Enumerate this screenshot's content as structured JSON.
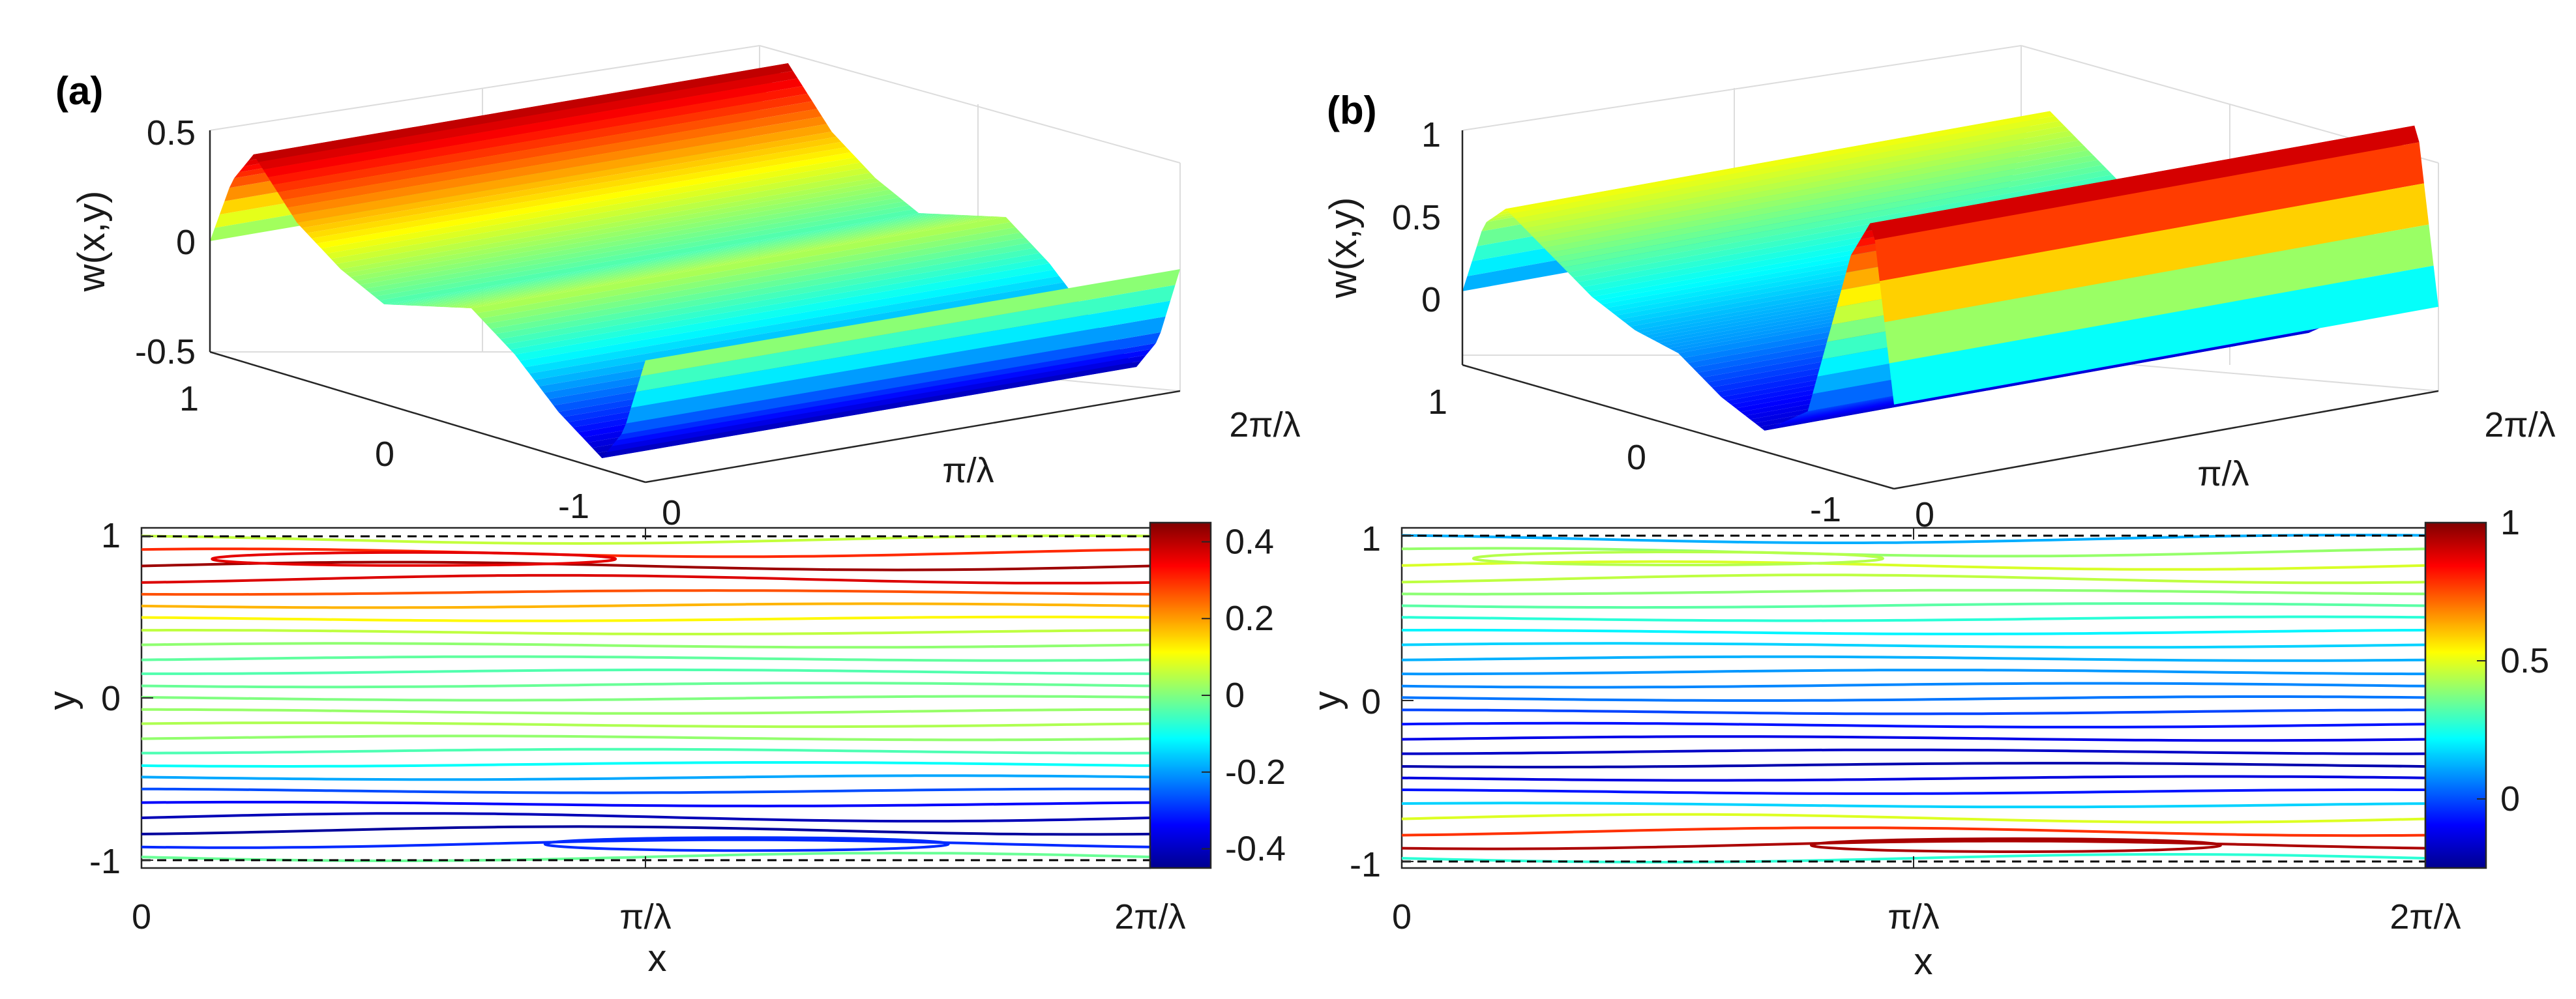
{
  "chart_data": [
    {
      "panel": "(a)",
      "type": "surface",
      "zlabel": "w(x,y)",
      "zlim": [
        -0.5,
        0.5
      ],
      "z_ticks": [
        "0.5",
        "0",
        "-0.5"
      ],
      "y_ticks": [
        "1",
        "0",
        "-1"
      ],
      "x_ticks": [
        "0",
        "π/λ",
        "2π/λ"
      ],
      "profile": {
        "y": [
          -1,
          -0.9,
          -0.8,
          -0.6,
          -0.4,
          -0.2,
          0,
          0.2,
          0.4,
          0.6,
          0.8,
          0.9,
          1
        ],
        "w": [
          0.05,
          -0.3,
          -0.45,
          -0.3,
          -0.1,
          0.05,
          0.0,
          -0.05,
          0.05,
          0.2,
          0.45,
          0.3,
          0.0
        ]
      }
    },
    {
      "panel": "(a)",
      "type": "contour",
      "xlabel": "x",
      "ylabel": "y",
      "x_ticks": [
        "0",
        "π/λ",
        "2π/λ"
      ],
      "y_ticks": [
        "1",
        "0",
        "-1"
      ],
      "colorbar": {
        "range": [
          -0.45,
          0.45
        ],
        "ticks": [
          "0.4",
          "0.2",
          "0",
          "-0.2",
          "-0.4"
        ],
        "tick_values": [
          0.4,
          0.2,
          0,
          -0.2,
          -0.4
        ]
      }
    },
    {
      "panel": "(b)",
      "type": "surface",
      "zlabel": "w(x,y)",
      "zlim": [
        -0.3,
        1
      ],
      "z_ticks": [
        "1",
        "0.5",
        "0"
      ],
      "y_ticks": [
        "1",
        "0",
        "-1"
      ],
      "x_ticks": [
        "0",
        "π/λ",
        "2π/λ"
      ],
      "profile": {
        "y": [
          -1,
          -0.9,
          -0.8,
          -0.6,
          -0.4,
          -0.2,
          0,
          0.2,
          0.4,
          0.6,
          0.8,
          0.9,
          1
        ],
        "w": [
          0.1,
          0.95,
          0.75,
          -0.05,
          -0.2,
          -0.1,
          0.05,
          0.1,
          0.2,
          0.35,
          0.5,
          0.4,
          0.05
        ]
      }
    },
    {
      "panel": "(b)",
      "type": "contour",
      "xlabel": "x",
      "ylabel": "y",
      "x_ticks": [
        "0",
        "π/λ",
        "2π/λ"
      ],
      "y_ticks": [
        "1",
        "0",
        "-1"
      ],
      "colorbar": {
        "range": [
          -0.25,
          1.0
        ],
        "ticks": [
          "1",
          "0.5",
          "0"
        ],
        "tick_values": [
          1,
          0.5,
          0
        ]
      }
    }
  ]
}
